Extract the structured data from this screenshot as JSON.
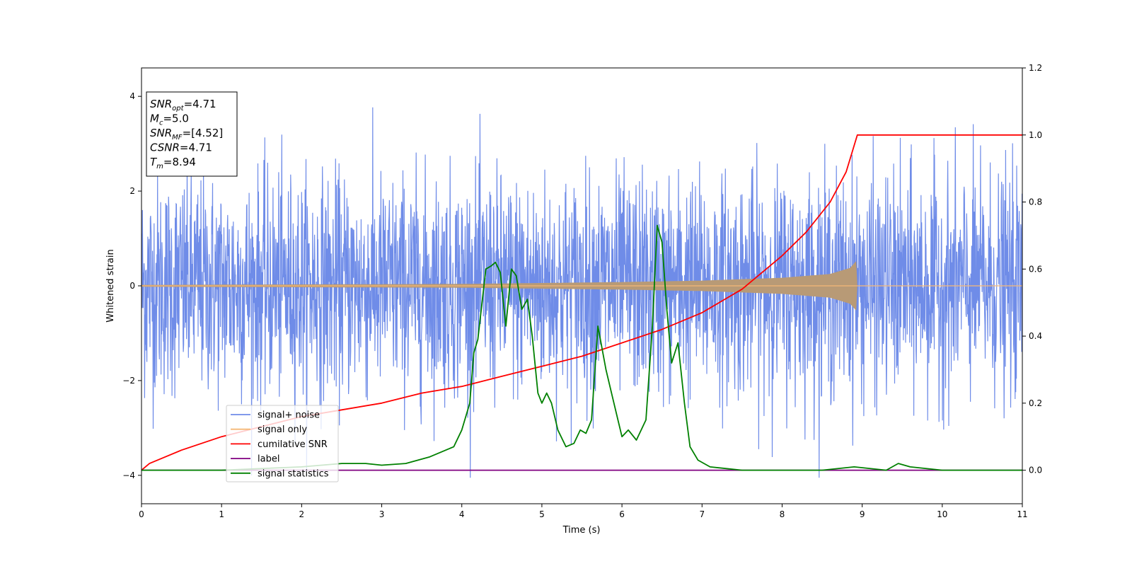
{
  "chart_data": {
    "type": "line",
    "title": "",
    "xlabel": "Time (s)",
    "ylabel": "Whitened strain",
    "xlim": [
      0,
      11
    ],
    "ylim": [
      -4.6,
      4.6
    ],
    "y2lim": [
      -0.1,
      1.2
    ],
    "x_ticks": [
      0,
      1,
      2,
      3,
      4,
      5,
      6,
      7,
      8,
      9,
      10,
      11
    ],
    "y_ticks": [
      -4,
      -2,
      0,
      2,
      4
    ],
    "y2_ticks": [
      0.0,
      0.2,
      0.4,
      0.6,
      0.8,
      1.0,
      1.2
    ],
    "grid": false,
    "legend_position": "lower-left",
    "colors": {
      "signal_noise": "#6f8ce8",
      "signal_only": "#f5b877",
      "signal_only_overlap": "#b89a76",
      "cumulative_snr": "#ff0000",
      "label": "#800080",
      "signal_statistics": "#008000"
    },
    "info_box": [
      {
        "base": "SNR",
        "sub": "opt",
        "value": "=4.71"
      },
      {
        "base": "M",
        "sub": "c",
        "value": "=5.0"
      },
      {
        "base": "SNR",
        "sub": "MF",
        "value": "=[4.52]"
      },
      {
        "base": "CSNR",
        "sub": "",
        "value": "=4.71"
      },
      {
        "base": "T",
        "sub": "m",
        "value": "=8.94"
      }
    ],
    "series": [
      {
        "name": "signal+ noise",
        "axis": "left",
        "style": "noise",
        "description_amplitude": 2.6,
        "x_range": [
          0,
          11
        ]
      },
      {
        "name": "signal only",
        "axis": "left",
        "style": "chirp",
        "merger_time": 8.94,
        "envelope": [
          [
            0,
            0.02
          ],
          [
            4,
            0.04
          ],
          [
            6,
            0.08
          ],
          [
            7,
            0.11
          ],
          [
            8,
            0.17
          ],
          [
            8.6,
            0.25
          ],
          [
            8.85,
            0.38
          ],
          [
            8.94,
            0.55
          ]
        ]
      },
      {
        "name": "cumilative SNR",
        "axis": "right",
        "x": [
          0,
          0.1,
          0.5,
          1,
          1.5,
          2,
          2.5,
          3,
          3.5,
          4,
          4.5,
          5,
          5.5,
          6,
          6.5,
          7,
          7.5,
          8,
          8.3,
          8.6,
          8.8,
          8.94,
          9.5,
          10,
          10.5,
          11
        ],
        "values": [
          0.0,
          0.02,
          0.06,
          0.1,
          0.13,
          0.16,
          0.18,
          0.2,
          0.23,
          0.25,
          0.28,
          0.31,
          0.34,
          0.38,
          0.42,
          0.47,
          0.54,
          0.64,
          0.71,
          0.8,
          0.89,
          1.0,
          1.0,
          1.0,
          1.0,
          1.0
        ]
      },
      {
        "name": "label",
        "axis": "right",
        "x": [
          0,
          11
        ],
        "values": [
          0.0,
          0.0
        ]
      },
      {
        "name": "signal statistics",
        "axis": "right",
        "x": [
          0,
          1,
          2,
          2.5,
          2.8,
          3.0,
          3.3,
          3.6,
          3.7,
          3.8,
          3.9,
          4.0,
          4.1,
          4.15,
          4.2,
          4.3,
          4.37,
          4.42,
          4.48,
          4.55,
          4.62,
          4.68,
          4.75,
          4.82,
          4.88,
          4.95,
          5.0,
          5.06,
          5.12,
          5.2,
          5.3,
          5.4,
          5.48,
          5.55,
          5.62,
          5.7,
          5.8,
          5.88,
          5.95,
          6.0,
          6.08,
          6.18,
          6.3,
          6.38,
          6.44,
          6.5,
          6.56,
          6.62,
          6.7,
          6.78,
          6.85,
          6.95,
          7.1,
          7.5,
          8.0,
          8.5,
          8.9,
          9.3,
          9.45,
          9.6,
          10.0,
          10.5,
          11.0
        ],
        "values": [
          0.0,
          0.0,
          0.01,
          0.02,
          0.02,
          0.015,
          0.02,
          0.04,
          0.05,
          0.06,
          0.07,
          0.12,
          0.2,
          0.35,
          0.39,
          0.6,
          0.61,
          0.62,
          0.59,
          0.43,
          0.6,
          0.58,
          0.48,
          0.51,
          0.4,
          0.23,
          0.2,
          0.23,
          0.2,
          0.12,
          0.07,
          0.08,
          0.12,
          0.11,
          0.15,
          0.43,
          0.3,
          0.22,
          0.15,
          0.1,
          0.12,
          0.09,
          0.15,
          0.43,
          0.73,
          0.68,
          0.48,
          0.32,
          0.38,
          0.2,
          0.07,
          0.03,
          0.01,
          0.0,
          0.0,
          0.0,
          0.01,
          0.0,
          0.02,
          0.01,
          0.0,
          0.0,
          0.0
        ]
      }
    ]
  }
}
